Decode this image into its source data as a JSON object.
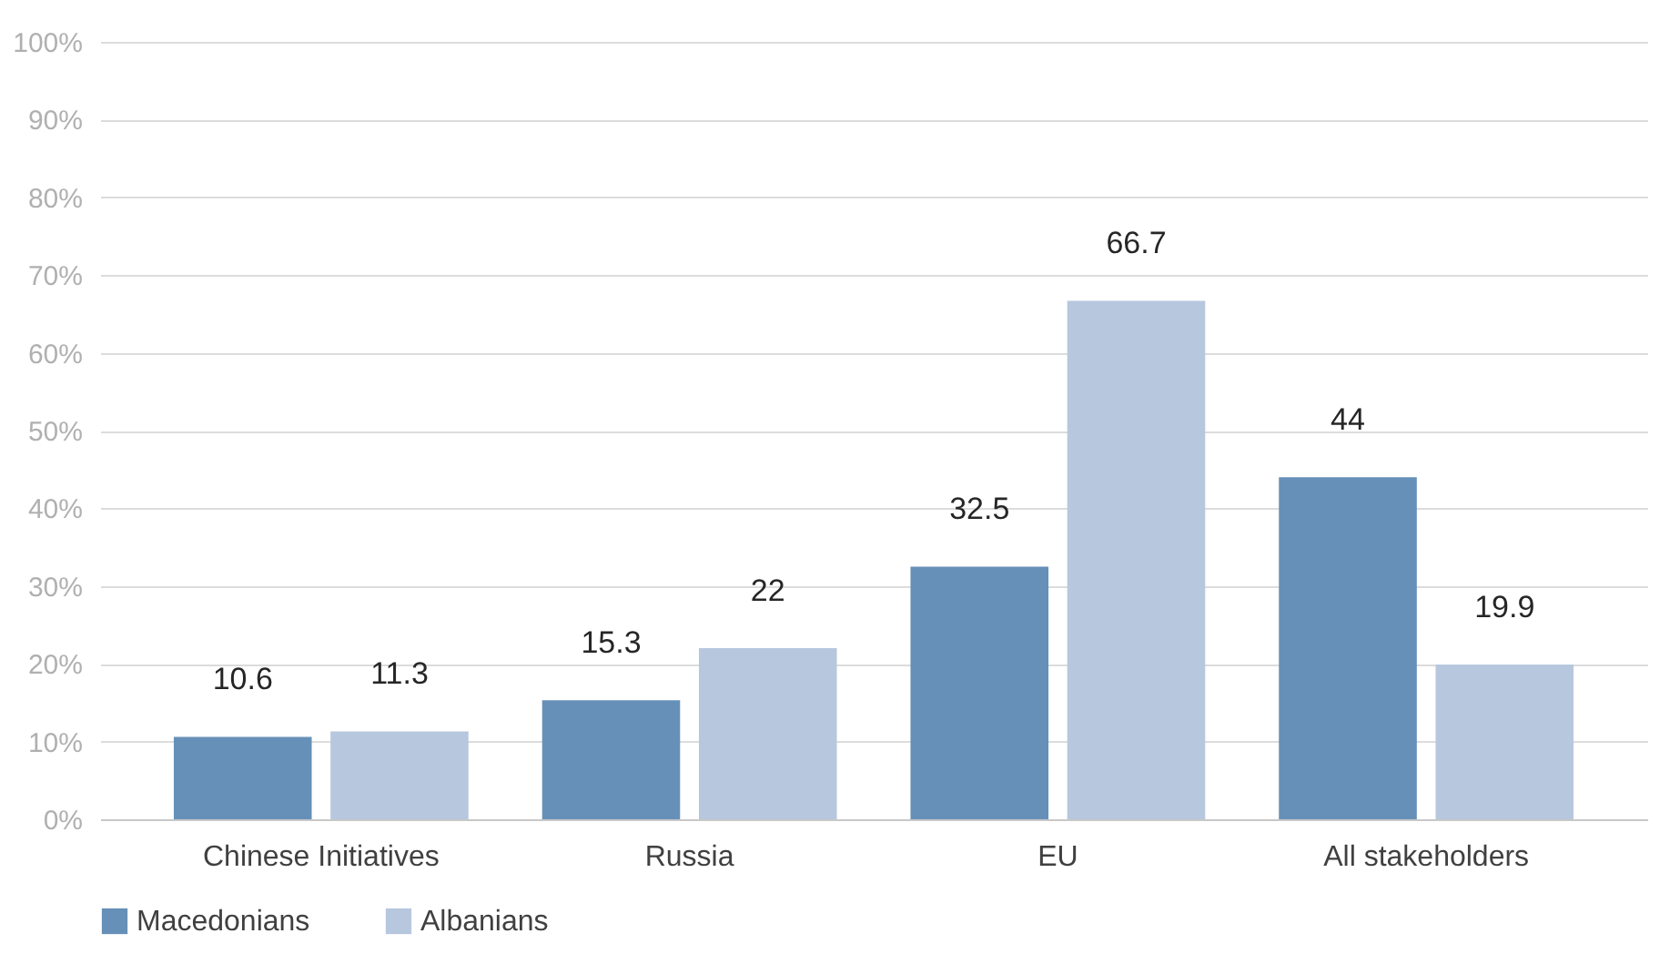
{
  "chart_data": {
    "type": "bar",
    "categories": [
      "Chinese Initiatives",
      "Russia",
      "EU",
      "All stakeholders"
    ],
    "series": [
      {
        "name": "Macedonians",
        "color": "#6690b8",
        "values": [
          10.6,
          15.3,
          32.5,
          44
        ]
      },
      {
        "name": "Albanians",
        "color": "#b7c7de",
        "values": [
          11.3,
          22,
          66.7,
          19.9
        ]
      }
    ],
    "ylim": [
      0,
      100
    ],
    "yticks": [
      {
        "value": 0,
        "label": "0%"
      },
      {
        "value": 10,
        "label": "10%"
      },
      {
        "value": 20,
        "label": "20%"
      },
      {
        "value": 30,
        "label": "30%"
      },
      {
        "value": 40,
        "label": "40%"
      },
      {
        "value": 50,
        "label": "50%"
      },
      {
        "value": 60,
        "label": "60%"
      },
      {
        "value": 70,
        "label": "70%"
      },
      {
        "value": 80,
        "label": "80%"
      },
      {
        "value": 90,
        "label": "90%"
      },
      {
        "value": 100,
        "label": "100%"
      }
    ],
    "grid": "y",
    "legend": "bottom",
    "data_labels": true
  }
}
